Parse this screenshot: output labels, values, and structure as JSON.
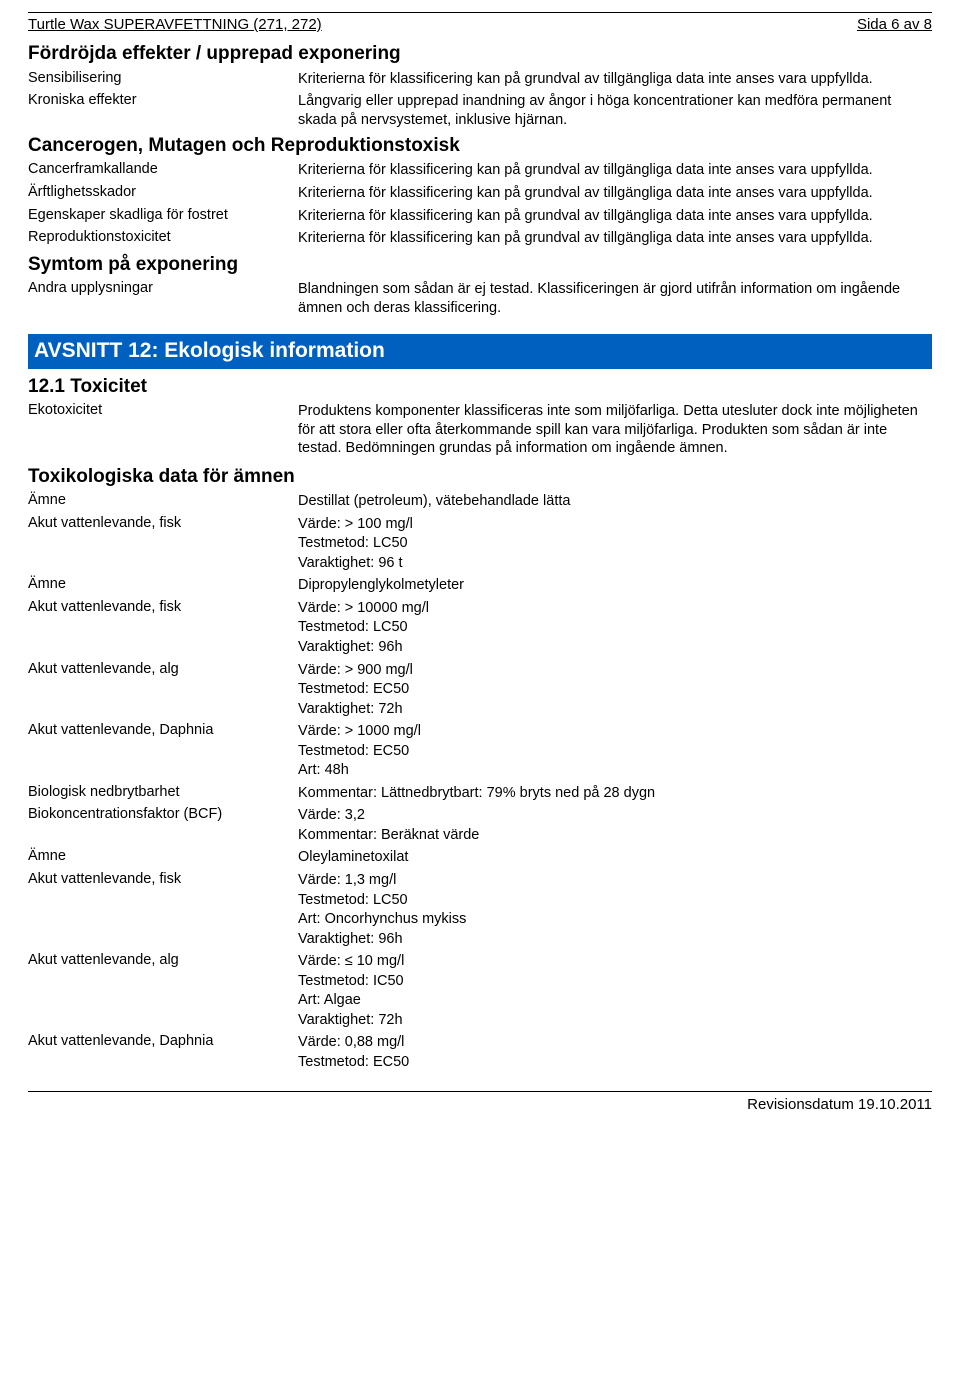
{
  "header": {
    "title": "Turtle Wax SUPERAVFETTNING (271, 272)",
    "page": "Sida 6 av 8"
  },
  "footer": {
    "revision": "Revisionsdatum 19.10.2011"
  },
  "s1": {
    "heading": "Fördröjda effekter / upprepad exponering",
    "rows": [
      {
        "label": "Sensibilisering",
        "lines": [
          "Kriterierna för klassificering kan på grundval av tillgängliga data inte anses vara uppfyllda."
        ]
      },
      {
        "label": "Kroniska effekter",
        "lines": [
          "Långvarig eller upprepad inandning av ångor i höga koncentrationer kan medföra permanent skada på nervsystemet, inklusive hjärnan."
        ]
      }
    ]
  },
  "s2": {
    "heading": "Cancerogen, Mutagen och Reproduktionstoxisk",
    "rows": [
      {
        "label": "Cancerframkallande",
        "lines": [
          "Kriterierna för klassificering kan på grundval av tillgängliga data inte anses vara uppfyllda."
        ]
      },
      {
        "label": "Ärftlighetsskador",
        "lines": [
          "Kriterierna för klassificering kan på grundval av tillgängliga data inte anses vara uppfyllda."
        ]
      },
      {
        "label": "Egenskaper skadliga för fostret",
        "lines": [
          "Kriterierna för klassificering kan på grundval av tillgängliga data inte anses vara uppfyllda."
        ]
      },
      {
        "label": "Reproduktionstoxicitet",
        "lines": [
          "Kriterierna för klassificering kan på grundval av tillgängliga data inte anses vara uppfyllda."
        ]
      }
    ]
  },
  "s3": {
    "heading": "Symtom på exponering",
    "rows": [
      {
        "label": "Andra upplysningar",
        "lines": [
          "Blandningen som sådan är ej testad. Klassificeringen är gjord utifrån information om ingående ämnen och deras klassificering."
        ]
      }
    ]
  },
  "bar12": "AVSNITT 12: Ekologisk information",
  "s4": {
    "heading": "12.1 Toxicitet",
    "rows": [
      {
        "label": "Ekotoxicitet",
        "lines": [
          "Produktens komponenter klassificeras inte som miljöfarliga. Detta utesluter dock inte möjligheten för att stora eller ofta återkommande spill kan vara miljöfarliga. Produkten som sådan är inte testad. Bedömningen grundas på information om ingående ämnen."
        ]
      }
    ]
  },
  "s5": {
    "heading": "Toxikologiska data för ämnen",
    "rows": [
      {
        "label": "Ämne",
        "lines": [
          "Destillat (petroleum), vätebehandlade lätta"
        ]
      },
      {
        "label": "Akut vattenlevande, fisk",
        "lines": [
          "Värde: > 100 mg/l",
          "Testmetod: LC50",
          "Varaktighet: 96 t"
        ]
      },
      {
        "label": "Ämne",
        "lines": [
          "Dipropylenglykolmetyleter"
        ]
      },
      {
        "label": "Akut vattenlevande, fisk",
        "lines": [
          "Värde: > 10000 mg/l",
          "Testmetod: LC50",
          "Varaktighet: 96h"
        ]
      },
      {
        "label": "Akut vattenlevande, alg",
        "lines": [
          "Värde: > 900 mg/l",
          "Testmetod: EC50",
          "Varaktighet: 72h"
        ]
      },
      {
        "label": "Akut vattenlevande, Daphnia",
        "lines": [
          "Värde: > 1000 mg/l",
          "Testmetod: EC50",
          "Art: 48h"
        ]
      },
      {
        "label": "Biologisk nedbrytbarhet",
        "lines": [
          "Kommentar: Lättnedbrytbart: 79% bryts ned på 28 dygn"
        ]
      },
      {
        "label": "Biokoncentrationsfaktor (BCF)",
        "lines": [
          "Värde: 3,2",
          "Kommentar: Beräknat värde"
        ]
      },
      {
        "label": "Ämne",
        "lines": [
          "Oleylaminetoxilat"
        ]
      },
      {
        "label": "Akut vattenlevande, fisk",
        "lines": [
          "Värde: 1,3 mg/l",
          "Testmetod: LC50",
          "Art: Oncorhynchus mykiss",
          "Varaktighet: 96h"
        ]
      },
      {
        "label": "Akut vattenlevande, alg",
        "lines": [
          "Värde: ≤ 10 mg/l",
          "Testmetod: IC50",
          "Art: Algae",
          "Varaktighet: 72h"
        ]
      },
      {
        "label": "Akut vattenlevande, Daphnia",
        "lines": [
          "Värde: 0,88 mg/l",
          "Testmetod: EC50"
        ]
      }
    ]
  }
}
